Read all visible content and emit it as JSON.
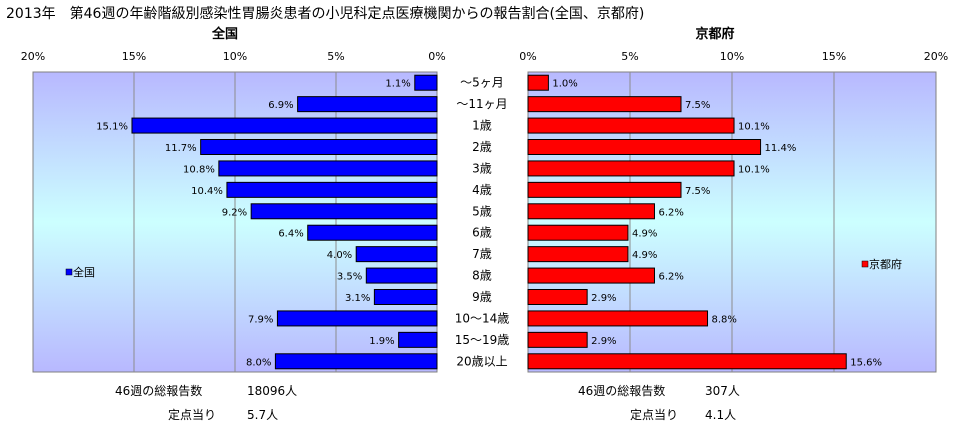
{
  "title": "2013年　第46週の年齢階級別感染性胃腸炎患者の小児科定点医療機関からの報告割合(全国、京都府)",
  "chart_data": [
    {
      "type": "bar",
      "orientation": "horizontal",
      "direction": "right-to-left",
      "title": "全国",
      "xlim": [
        0,
        20
      ],
      "xticks": [
        "0%",
        "5%",
        "10%",
        "15%",
        "20%"
      ],
      "categories": [
        "～5ヶ月",
        "～11ヶ月",
        "1歳",
        "2歳",
        "3歳",
        "4歳",
        "5歳",
        "6歳",
        "7歳",
        "8歳",
        "9歳",
        "10～14歳",
        "15～19歳",
        "20歳以上"
      ],
      "series": [
        {
          "name": "全国",
          "color": "#0000ff",
          "values": [
            1.1,
            6.9,
            15.1,
            11.7,
            10.8,
            10.4,
            9.2,
            6.4,
            4.0,
            3.5,
            3.1,
            7.9,
            1.9,
            8.0
          ],
          "labels": [
            "1.1%",
            "6.9%",
            "15.1%",
            "11.7%",
            "10.8%",
            "10.4%",
            "9.2%",
            "6.4%",
            "4.0%",
            "3.5%",
            "3.1%",
            "7.9%",
            "1.9%",
            "8.0%"
          ]
        }
      ],
      "grid": true,
      "legend": "left"
    },
    {
      "type": "bar",
      "orientation": "horizontal",
      "direction": "left-to-right",
      "title": "京都府",
      "xlim": [
        0,
        20
      ],
      "xticks": [
        "0%",
        "5%",
        "10%",
        "15%",
        "20%"
      ],
      "categories": [
        "～5ヶ月",
        "～11ヶ月",
        "1歳",
        "2歳",
        "3歳",
        "4歳",
        "5歳",
        "6歳",
        "7歳",
        "8歳",
        "9歳",
        "10～14歳",
        "15～19歳",
        "20歳以上"
      ],
      "series": [
        {
          "name": "京都府",
          "color": "#ff0000",
          "values": [
            1.0,
            7.5,
            10.1,
            11.4,
            10.1,
            7.5,
            6.2,
            4.9,
            4.9,
            6.2,
            2.9,
            8.8,
            2.9,
            15.6
          ],
          "labels": [
            "1.0%",
            "7.5%",
            "10.1%",
            "11.4%",
            "10.1%",
            "7.5%",
            "6.2%",
            "4.9%",
            "4.9%",
            "6.2%",
            "2.9%",
            "8.8%",
            "2.9%",
            "15.6%"
          ]
        }
      ],
      "grid": true,
      "legend": "right"
    }
  ],
  "footer": {
    "left": {
      "total_label": "46週の総報告数",
      "total_value": "18096人",
      "per_label": "定点当り",
      "per_value": "5.7人"
    },
    "right": {
      "total_label": "46週の総報告数",
      "total_value": "307人",
      "per_label": "定点当り",
      "per_value": "4.1人"
    }
  },
  "colors": {
    "national_bar": "#0000ff",
    "kyoto_bar": "#ff0000",
    "plot_bg_edge": "#b8b8ff",
    "plot_bg_center": "#ccffff"
  }
}
